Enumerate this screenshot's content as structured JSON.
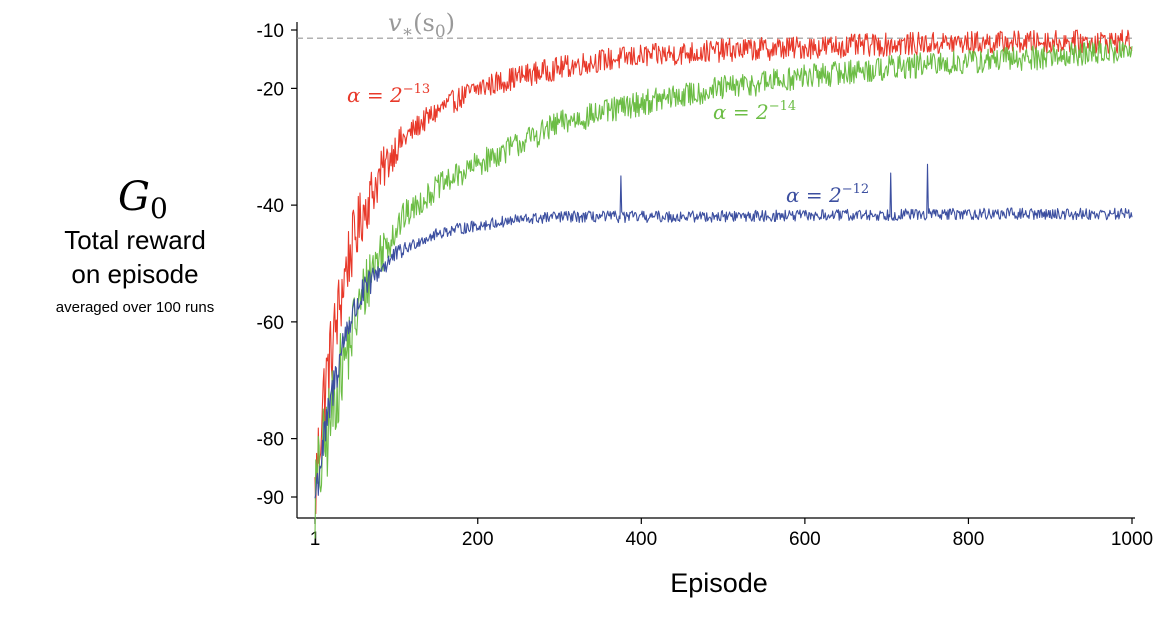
{
  "chart_data": {
    "type": "line",
    "xlabel": "Episode",
    "ylabel": {
      "symbol": "G",
      "subscript": "0",
      "line1": "Total reward",
      "line2": "on episode",
      "line3": "averaged over 100 runs"
    },
    "xlim": [
      1,
      1000
    ],
    "ylim": [
      -93,
      -8
    ],
    "x_ticks": [
      {
        "value": 1,
        "label": "1"
      },
      {
        "value": 200,
        "label": "200"
      },
      {
        "value": 400,
        "label": "400"
      },
      {
        "value": 600,
        "label": "600"
      },
      {
        "value": 800,
        "label": "800"
      },
      {
        "value": 1000,
        "label": "1000"
      }
    ],
    "y_ticks": [
      {
        "value": -10,
        "label": "-10"
      },
      {
        "value": -20,
        "label": "-20"
      },
      {
        "value": -40,
        "label": "-40"
      },
      {
        "value": -60,
        "label": "-60"
      },
      {
        "value": -80,
        "label": "-80"
      },
      {
        "value": -90,
        "label": "-90"
      }
    ],
    "reference_line": {
      "value": -11.4,
      "label": {
        "v": "v",
        "sub": "∗",
        "arg": "(s",
        "argsub": "0",
        "close": ")"
      },
      "color": "#999999"
    },
    "series": [
      {
        "name_prefix": "α = 2",
        "name_exp": "−13",
        "color": "#e8392a",
        "label_pos": "upper-left",
        "knots": [
          [
            1,
            -90
          ],
          [
            10,
            -74
          ],
          [
            25,
            -62
          ],
          [
            40,
            -50
          ],
          [
            60,
            -41
          ],
          [
            80,
            -35
          ],
          [
            100,
            -30
          ],
          [
            130,
            -26
          ],
          [
            160,
            -23
          ],
          [
            200,
            -20
          ],
          [
            250,
            -18
          ],
          [
            300,
            -16.5
          ],
          [
            350,
            -15.2
          ],
          [
            400,
            -14.5
          ],
          [
            500,
            -13.5
          ],
          [
            600,
            -13
          ],
          [
            700,
            -12.5
          ],
          [
            800,
            -12.2
          ],
          [
            900,
            -12
          ],
          [
            1000,
            -12
          ]
        ],
        "noise": 2.0,
        "spikes": []
      },
      {
        "name_prefix": "α = 2",
        "name_exp": "−14",
        "color": "#6cbd45",
        "label_pos": "middle",
        "knots": [
          [
            1,
            -90
          ],
          [
            15,
            -80
          ],
          [
            30,
            -70
          ],
          [
            50,
            -60
          ],
          [
            70,
            -51
          ],
          [
            90,
            -46
          ],
          [
            110,
            -42
          ],
          [
            150,
            -37
          ],
          [
            200,
            -33
          ],
          [
            250,
            -29.5
          ],
          [
            300,
            -26
          ],
          [
            400,
            -22.5
          ],
          [
            500,
            -20
          ],
          [
            600,
            -18
          ],
          [
            700,
            -16.5
          ],
          [
            800,
            -15.5
          ],
          [
            900,
            -14.5
          ],
          [
            1000,
            -13.5
          ]
        ],
        "noise": 2.2,
        "spikes": []
      },
      {
        "name_prefix": "α = 2",
        "name_exp": "−12",
        "color": "#3c4fa0",
        "label_pos": "right",
        "knots": [
          [
            1,
            -90
          ],
          [
            10,
            -82
          ],
          [
            25,
            -70
          ],
          [
            40,
            -61
          ],
          [
            60,
            -55
          ],
          [
            80,
            -51
          ],
          [
            100,
            -48.5
          ],
          [
            130,
            -46
          ],
          [
            160,
            -44.5
          ],
          [
            200,
            -43.5
          ],
          [
            250,
            -42.5
          ],
          [
            300,
            -42
          ],
          [
            400,
            -42
          ],
          [
            600,
            -41.8
          ],
          [
            800,
            -41.5
          ],
          [
            1000,
            -41.5
          ]
        ],
        "noise": 1.0,
        "spikes": [
          [
            375,
            -35
          ],
          [
            705,
            -34.5
          ],
          [
            750,
            -33
          ]
        ]
      }
    ]
  }
}
